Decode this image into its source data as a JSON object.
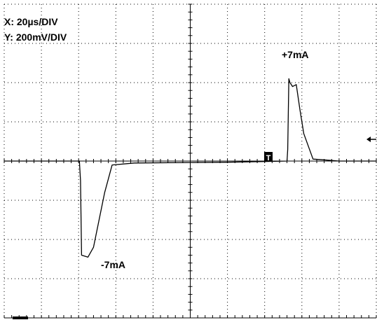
{
  "scale": {
    "x_label": "X: 20µs/DIV",
    "y_label": "Y: 200mV/DIV"
  },
  "annotations": {
    "positive": "+7mA",
    "negative": "-7mA"
  },
  "markers": {
    "trigger": "T"
  },
  "colors": {
    "background": "#ffffff",
    "grid": "#000000",
    "trace": "#000000"
  },
  "chart_data": {
    "type": "line",
    "title": "",
    "xlabel": "X: 20µs/DIV",
    "ylabel": "Y: 200mV/DIV",
    "grid": true,
    "divisions": {
      "x": 10,
      "y": 8
    },
    "xlim": [
      0,
      10
    ],
    "ylim": [
      -4,
      4
    ],
    "series": [
      {
        "name": "",
        "x": [
          0,
          2.02,
          2.05,
          2.08,
          2.25,
          2.4,
          2.7,
          2.9,
          3.5,
          6.0,
          7.6,
          7.62,
          7.65,
          7.68,
          7.75,
          7.85,
          7.95,
          8.05,
          8.3,
          8.6,
          9.0,
          10
        ],
        "y": [
          0,
          0,
          -0.5,
          -2.4,
          -2.45,
          -2.2,
          -0.8,
          -0.1,
          -0.05,
          -0.03,
          0,
          0.3,
          2.1,
          2.0,
          1.9,
          1.95,
          1.3,
          0.7,
          0.05,
          0.03,
          0,
          0
        ]
      }
    ]
  }
}
